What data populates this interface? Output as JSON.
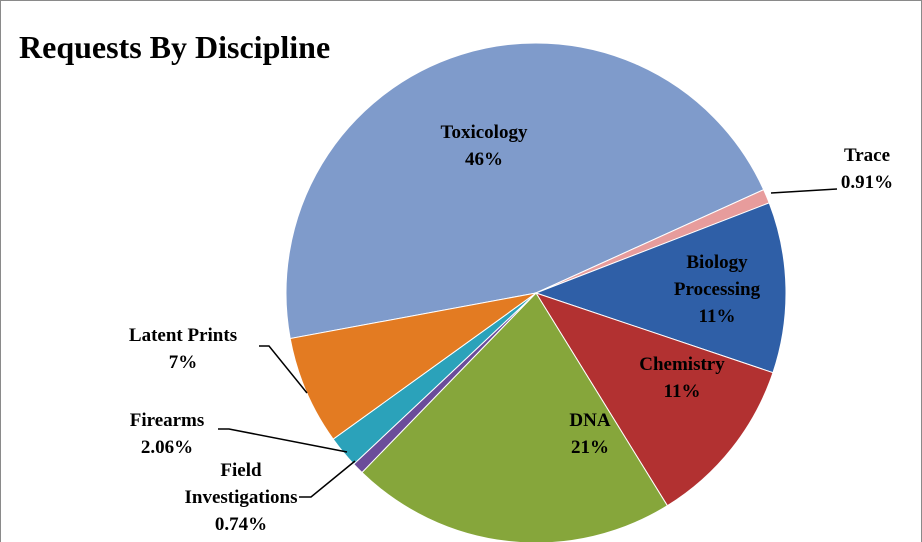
{
  "chart_data": {
    "type": "pie",
    "title": "Requests By Discipline",
    "categories": [
      "Toxicology",
      "Trace",
      "Biology Processing",
      "Chemistry",
      "DNA",
      "Field Investigations",
      "Firearms",
      "Latent Prints"
    ],
    "values": [
      46,
      0.91,
      11,
      11,
      21,
      0.74,
      2.06,
      7
    ],
    "value_labels": [
      "46%",
      "0.91%",
      "11%",
      "11%",
      "21%",
      "0.74%",
      "2.06%",
      "7%"
    ],
    "colors": [
      "#7f9bcb",
      "#e79c9c",
      "#2f5fa7",
      "#b23131",
      "#86a63b",
      "#6b4c9a",
      "#2ba2ba",
      "#e37b22"
    ]
  }
}
